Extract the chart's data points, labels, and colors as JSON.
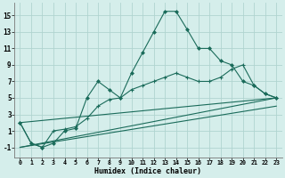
{
  "xlabel": "Humidex (Indice chaleur)",
  "xlim": [
    -0.5,
    23.5
  ],
  "ylim": [
    -2.2,
    16.5
  ],
  "yticks": [
    -1,
    1,
    3,
    5,
    7,
    9,
    11,
    13,
    15
  ],
  "xticks": [
    0,
    1,
    2,
    3,
    4,
    5,
    6,
    7,
    8,
    9,
    10,
    11,
    12,
    13,
    14,
    15,
    16,
    17,
    18,
    19,
    20,
    21,
    22,
    23
  ],
  "background_color": "#d5eeeb",
  "grid_color": "#b0d4d0",
  "line_color": "#1a6b5a",
  "line1_x": [
    0,
    1,
    2,
    3,
    4,
    5,
    6,
    7,
    8,
    9,
    10,
    11,
    12,
    13,
    14,
    15,
    16,
    17,
    18,
    19,
    20,
    21,
    22,
    23
  ],
  "line1_y": [
    2.0,
    -0.5,
    -1.0,
    -0.5,
    1.0,
    1.3,
    5.0,
    7.0,
    6.0,
    5.0,
    8.0,
    10.5,
    13.0,
    15.5,
    15.5,
    13.3,
    11.0,
    11.0,
    9.5,
    9.0,
    7.0,
    6.5,
    5.5,
    5.0
  ],
  "line2_x": [
    0,
    1,
    2,
    3,
    4,
    5,
    6,
    7,
    8,
    9,
    10,
    11,
    12,
    13,
    14,
    15,
    16,
    17,
    18,
    19,
    20,
    21,
    22,
    23
  ],
  "line2_y": [
    2.0,
    -0.5,
    -1.0,
    1.0,
    1.2,
    1.5,
    2.5,
    4.0,
    4.8,
    5.0,
    6.0,
    6.5,
    7.0,
    7.5,
    8.0,
    7.5,
    7.0,
    7.0,
    7.5,
    8.5,
    9.0,
    6.5,
    5.5,
    5.0
  ],
  "line3_x": [
    0,
    23
  ],
  "line3_y": [
    2.0,
    5.0
  ],
  "line4_x": [
    0,
    23
  ],
  "line4_y": [
    -1.0,
    5.0
  ],
  "line5_x": [
    0,
    23
  ],
  "line5_y": [
    -1.0,
    4.0
  ]
}
